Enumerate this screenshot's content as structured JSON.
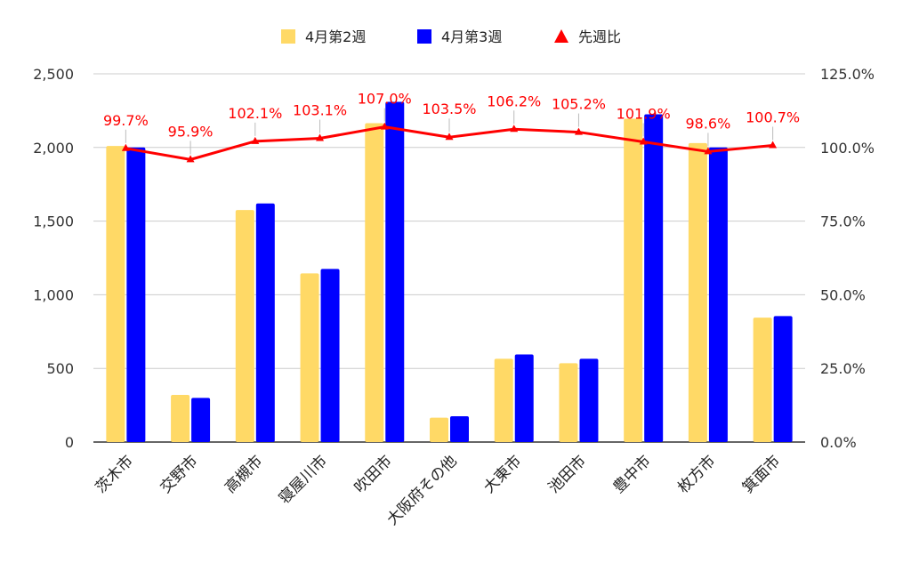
{
  "chart_data": {
    "type": "bar",
    "categories": [
      "茨木市",
      "交野市",
      "高槻市",
      "寝屋川市",
      "吹田市",
      "大阪府その他",
      "大東市",
      "池田市",
      "豊中市",
      "枚方市",
      "箕面市"
    ],
    "series": [
      {
        "name": "4月第2週",
        "type": "bar",
        "axis": "left",
        "color": "#ffd966",
        "values": [
          2010,
          320,
          1575,
          1145,
          2165,
          165,
          565,
          535,
          2195,
          2030,
          845
        ]
      },
      {
        "name": "4月第3週",
        "type": "bar",
        "axis": "left",
        "color": "#0000ff",
        "values": [
          2000,
          300,
          1620,
          1175,
          2310,
          175,
          595,
          565,
          2225,
          2000,
          855
        ]
      },
      {
        "name": "先週比",
        "type": "line",
        "axis": "right",
        "color": "#ff0000",
        "values": [
          99.7,
          95.9,
          102.1,
          103.1,
          107.0,
          103.5,
          106.2,
          105.2,
          101.9,
          98.6,
          100.7
        ],
        "labels": [
          "99.7%",
          "95.9%",
          "102.1%",
          "103.1%",
          "107.0%",
          "103.5%",
          "106.2%",
          "105.2%",
          "101.9%",
          "98.6%",
          "100.7%"
        ]
      }
    ],
    "y_left": {
      "min": 0,
      "max": 2500,
      "ticks": [
        "0",
        "500",
        "1,000",
        "1,500",
        "2,000",
        "2,500"
      ]
    },
    "y_right": {
      "min": 0,
      "max": 125,
      "ticks": [
        "0.0%",
        "25.0%",
        "50.0%",
        "75.0%",
        "100.0%",
        "125.0%"
      ]
    },
    "grid": true,
    "legend": "top-center"
  }
}
